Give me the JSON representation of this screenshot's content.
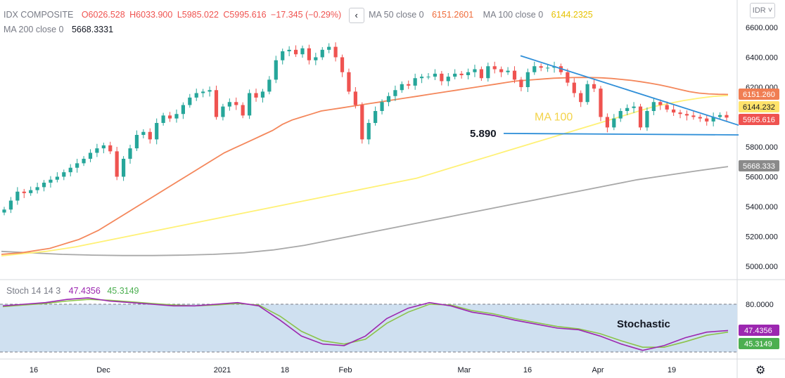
{
  "header": {
    "symbol": "IDX COMPOSITE",
    "open": "O6026.528",
    "high": "H6033.900",
    "low": "L5985.022",
    "close": "C5995.616",
    "change": "−17.345 (−0.29%)",
    "ma50_label": "MA 50 close 0",
    "ma50_value": "6151.2601",
    "ma100_label": "MA 100 close 0",
    "ma100_value": "6144.2325",
    "ma200_label": "MA 200 close 0",
    "ma200_value": "5668.3331",
    "nav_icon": "chevron-left-icon",
    "currency": "IDR"
  },
  "stoch_header": {
    "label": "Stoch 14 14 3",
    "k_value": "47.4356",
    "d_value": "45.3149"
  },
  "chart_data": {
    "type": "candlestick",
    "y_ticks": [
      "6600.000",
      "6400.000",
      "6200.000",
      "6000.000",
      "5800.000",
      "5600.000",
      "5400.000",
      "5200.000",
      "5000.000"
    ],
    "ylim": [
      4880,
      6680
    ],
    "x_ticks": [
      "16",
      "Dec",
      "2021",
      "18",
      "Feb",
      "Mar",
      "16",
      "Apr",
      "19"
    ],
    "price_labels": [
      {
        "text": "6151.260",
        "color": "#f07e53"
      },
      {
        "text": "6144.232",
        "color": "#ffe36b"
      },
      {
        "text": "5995.616",
        "color": "#ef5350"
      },
      {
        "text": "5668.333",
        "color": "#8a8a8a"
      }
    ],
    "annotations": {
      "support_label": "5.890",
      "ma_label": "MA 100",
      "stoch_label": "Stochastic"
    },
    "stoch_ticks": [
      "80.0000"
    ],
    "stoch_labels": [
      {
        "text": "47.4356",
        "color": "#9c27b0"
      },
      {
        "text": "45.3149",
        "color": "#4caf50"
      }
    ],
    "closes": [
      5380,
      5440,
      5500,
      5490,
      5510,
      5530,
      5560,
      5580,
      5600,
      5630,
      5660,
      5690,
      5720,
      5760,
      5790,
      5810,
      5770,
      5600,
      5720,
      5790,
      5880,
      5900,
      5850,
      5960,
      6010,
      5990,
      6020,
      6080,
      6130,
      6160,
      6170,
      6180,
      6000,
      6070,
      6100,
      6080,
      6010,
      6160,
      6130,
      6170,
      6250,
      6380,
      6440,
      6450,
      6420,
      6460,
      6380,
      6400,
      6450,
      6470,
      6400,
      6300,
      6170,
      6080,
      5850,
      5960,
      6040,
      6100,
      6140,
      6180,
      6220,
      6210,
      6260,
      6270,
      6270,
      6290,
      6240,
      6270,
      6290,
      6280,
      6300,
      6320,
      6260,
      6340,
      6320,
      6300,
      6310,
      6250,
      6200,
      6300,
      6340,
      6330,
      6330,
      6340,
      6300,
      6230,
      6160,
      6100,
      6220,
      6190,
      6000,
      5930,
      5990,
      6040,
      6060,
      6070,
      5930,
      6040,
      6100,
      6080,
      6050,
      6030,
      6020,
      6010,
      6000,
      5990,
      5970,
      6000,
      6013,
      5996
    ],
    "ma50": [
      5080,
      5085,
      5090,
      5100,
      5110,
      5120,
      5140,
      5160,
      5180,
      5210,
      5240,
      5280,
      5320,
      5360,
      5400,
      5440,
      5480,
      5520,
      5560,
      5600,
      5640,
      5680,
      5720,
      5760,
      5790,
      5820,
      5850,
      5880,
      5910,
      5950,
      5980,
      6000,
      6020,
      6040,
      6050,
      6060,
      6070,
      6080,
      6090,
      6100,
      6110,
      6120,
      6130,
      6140,
      6150,
      6160,
      6170,
      6180,
      6190,
      6200,
      6210,
      6220,
      6230,
      6240,
      6245,
      6250,
      6255,
      6260,
      6262,
      6264,
      6265,
      6264,
      6262,
      6258,
      6252,
      6245,
      6236,
      6226,
      6214,
      6200,
      6185,
      6170,
      6160,
      6155,
      6152,
      6151
    ],
    "ma100": [
      5070,
      5080,
      5090,
      5100,
      5115,
      5130,
      5150,
      5170,
      5190,
      5210,
      5230,
      5250,
      5270,
      5290,
      5310,
      5330,
      5350,
      5370,
      5390,
      5410,
      5430,
      5450,
      5470,
      5490,
      5510,
      5530,
      5550,
      5570,
      5590,
      5620,
      5650,
      5680,
      5710,
      5740,
      5770,
      5800,
      5830,
      5860,
      5890,
      5920,
      5950,
      5980,
      6010,
      6040,
      6070,
      6090,
      6110,
      6125,
      6138,
      6144
    ],
    "ma200": [
      5100,
      5090,
      5080,
      5075,
      5072,
      5072,
      5075,
      5080,
      5090,
      5110,
      5140,
      5180,
      5220,
      5260,
      5300,
      5340,
      5380,
      5420,
      5460,
      5500,
      5540,
      5580,
      5610,
      5640,
      5668
    ],
    "stoch_k": [
      78,
      80,
      82,
      86,
      88,
      84,
      82,
      80,
      78,
      78,
      80,
      82,
      78,
      60,
      40,
      30,
      28,
      40,
      62,
      75,
      82,
      78,
      70,
      66,
      60,
      55,
      50,
      48,
      40,
      30,
      22,
      28,
      38,
      45,
      47
    ],
    "stoch_d": [
      77,
      79,
      81,
      84,
      86,
      85,
      83,
      81,
      79,
      78,
      79,
      81,
      79,
      65,
      46,
      34,
      30,
      36,
      56,
      70,
      80,
      79,
      72,
      68,
      62,
      57,
      52,
      49,
      43,
      34,
      26,
      26,
      33,
      41,
      45
    ]
  }
}
